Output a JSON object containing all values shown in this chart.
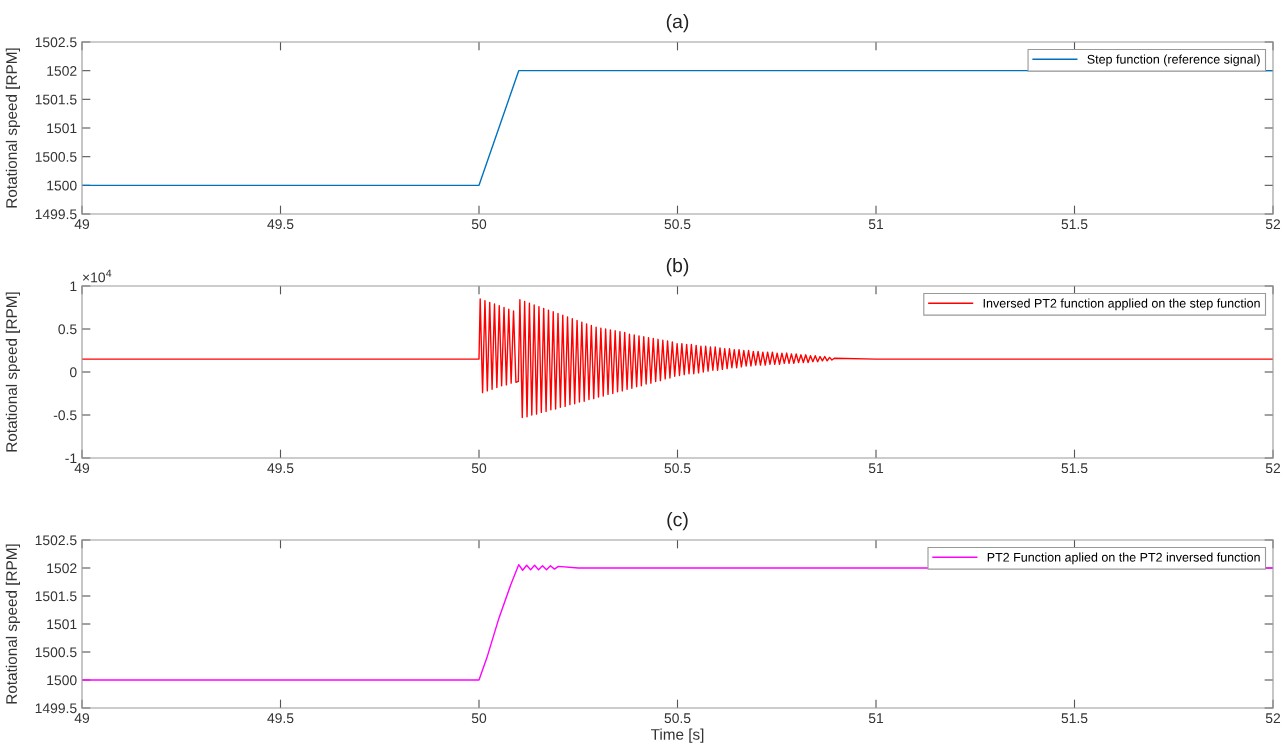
{
  "chart_data": [
    {
      "type": "line",
      "title": "(a)",
      "ylabel": "Rotational speed [RPM]",
      "xlim": [
        49,
        52
      ],
      "xticks": [
        49,
        49.5,
        50,
        50.5,
        51,
        51.5,
        52
      ],
      "ylim": [
        1499.5,
        1502.5
      ],
      "yticks": [
        1499.5,
        1500,
        1500.5,
        1501,
        1501.5,
        1502,
        1502.5
      ],
      "grid": false,
      "legend": "top right",
      "marker": "none",
      "line_style": "solid",
      "series": [
        {
          "name": "Step function (reference signal)",
          "color": "#0072bd",
          "x": [
            49,
            50,
            50.1,
            52
          ],
          "values": [
            1500,
            1500,
            1502,
            1502
          ]
        }
      ]
    },
    {
      "type": "line",
      "title": "(b)",
      "ylabel": "Rotational speed [RPM]",
      "annotations": [
        "×10$^{4}$"
      ],
      "xlim": [
        49,
        52
      ],
      "xticks": [
        49,
        49.5,
        50,
        50.5,
        51,
        51.5,
        52
      ],
      "ylim": [
        -1,
        1
      ],
      "yticks": [
        -1,
        -0.5,
        0,
        0.5,
        1
      ],
      "grid": false,
      "legend": "top right",
      "marker": "none",
      "line_style": "solid",
      "series": [
        {
          "name": "Inversed PT2 function applied on the step function",
          "color": "#ff0000",
          "x": [
            49,
            50.0,
            50.003,
            50.009,
            50.015,
            50.021,
            50.027,
            50.033,
            50.039,
            50.045,
            50.051,
            50.057,
            50.063,
            50.069,
            50.075,
            50.081,
            50.087,
            50.093,
            50.099,
            50.103,
            50.109,
            50.115,
            50.121,
            50.127,
            50.133,
            50.139,
            50.145,
            50.151,
            50.157,
            50.163,
            50.169,
            50.175,
            50.181,
            50.187,
            50.193,
            50.199,
            50.205,
            50.211,
            50.217,
            50.223,
            50.229,
            50.235,
            50.241,
            50.247,
            50.253,
            50.259,
            50.265,
            50.271,
            50.277,
            50.283,
            50.289,
            50.295,
            50.301,
            50.307,
            50.313,
            50.319,
            50.325,
            50.331,
            50.337,
            50.343,
            50.349,
            50.355,
            50.361,
            50.367,
            50.373,
            50.379,
            50.385,
            50.391,
            50.397,
            50.403,
            50.409,
            50.415,
            50.421,
            50.427,
            50.433,
            50.439,
            50.445,
            50.451,
            50.457,
            50.463,
            50.469,
            50.475,
            50.481,
            50.487,
            50.493,
            50.499,
            50.505,
            50.511,
            50.517,
            50.523,
            50.529,
            50.535,
            50.541,
            50.547,
            50.553,
            50.559,
            50.565,
            50.571,
            50.577,
            50.583,
            50.589,
            50.595,
            50.601,
            50.607,
            50.613,
            50.619,
            50.625,
            50.631,
            50.637,
            50.643,
            50.649,
            50.655,
            50.661,
            50.667,
            50.673,
            50.679,
            50.685,
            50.691,
            50.697,
            50.703,
            50.709,
            50.715,
            50.721,
            50.727,
            50.733,
            50.739,
            50.745,
            50.751,
            50.757,
            50.763,
            50.769,
            50.775,
            50.781,
            50.787,
            50.793,
            50.799,
            50.805,
            50.811,
            50.817,
            50.823,
            50.829,
            50.835,
            50.841,
            50.847,
            50.853,
            50.859,
            50.865,
            50.871,
            50.877,
            50.883,
            50.889,
            50.895,
            51,
            52
          ],
          "values": [
            0.15,
            0.15,
            0.85,
            -0.24,
            0.83,
            -0.22,
            0.81,
            -0.2,
            0.79,
            -0.18,
            0.77,
            -0.16,
            0.75,
            -0.15,
            0.73,
            -0.13,
            0.71,
            -0.12,
            -0.11,
            0.84,
            -0.53,
            0.82,
            -0.52,
            0.8,
            -0.5,
            0.78,
            -0.49,
            0.76,
            -0.47,
            0.74,
            -0.46,
            0.72,
            -0.44,
            0.7,
            -0.43,
            0.68,
            -0.41,
            0.66,
            -0.4,
            0.64,
            -0.38,
            0.62,
            -0.37,
            0.6,
            -0.35,
            0.58,
            -0.34,
            0.56,
            -0.32,
            0.54,
            -0.31,
            0.52,
            -0.29,
            0.51,
            -0.28,
            0.5,
            -0.26,
            0.49,
            -0.25,
            0.48,
            -0.23,
            0.47,
            -0.22,
            0.46,
            -0.2,
            0.44,
            -0.19,
            0.43,
            -0.17,
            0.42,
            -0.16,
            0.41,
            -0.14,
            0.4,
            -0.13,
            0.39,
            -0.11,
            0.38,
            -0.1,
            0.37,
            -0.08,
            0.36,
            -0.07,
            0.35,
            -0.05,
            0.33,
            -0.04,
            0.33,
            -0.03,
            0.32,
            -0.02,
            0.32,
            -0.02,
            0.31,
            -0.01,
            0.3,
            0.0,
            0.3,
            0.01,
            0.29,
            0.02,
            0.29,
            0.02,
            0.28,
            0.03,
            0.27,
            0.04,
            0.27,
            0.05,
            0.26,
            0.05,
            0.26,
            0.06,
            0.25,
            0.07,
            0.25,
            0.07,
            0.24,
            0.08,
            0.24,
            0.08,
            0.23,
            0.08,
            0.23,
            0.09,
            0.23,
            0.09,
            0.22,
            0.09,
            0.22,
            0.1,
            0.22,
            0.1,
            0.21,
            0.1,
            0.21,
            0.11,
            0.2,
            0.11,
            0.2,
            0.11,
            0.19,
            0.12,
            0.19,
            0.12,
            0.18,
            0.13,
            0.18,
            0.13,
            0.17,
            0.14,
            0.16,
            0.15,
            0.15
          ]
        }
      ]
    },
    {
      "type": "line",
      "title": "(c)",
      "xlabel": "Time [s]",
      "ylabel": "Rotational speed [RPM]",
      "xlim": [
        49,
        52
      ],
      "xticks": [
        49,
        49.5,
        50,
        50.5,
        51,
        51.5,
        52
      ],
      "ylim": [
        1499.5,
        1502.5
      ],
      "yticks": [
        1499.5,
        1500,
        1500.5,
        1501,
        1501.5,
        1502,
        1502.5
      ],
      "grid": false,
      "legend": "top right",
      "marker": "none",
      "line_style": "solid",
      "series": [
        {
          "name": "PT2 Function aplied on the PT2 inversed function",
          "color": "#ff00ff",
          "x": [
            49,
            50.0,
            50.02,
            50.05,
            50.08,
            50.1,
            50.11,
            50.12,
            50.13,
            50.14,
            50.15,
            50.16,
            50.17,
            50.18,
            50.19,
            50.2,
            50.25,
            52
          ],
          "values": [
            1500,
            1500,
            1500.4,
            1501.1,
            1501.7,
            1502.06,
            1501.96,
            1502.05,
            1501.97,
            1502.05,
            1501.97,
            1502.04,
            1501.97,
            1502.04,
            1501.98,
            1502.03,
            1502,
            1502
          ]
        }
      ]
    }
  ]
}
